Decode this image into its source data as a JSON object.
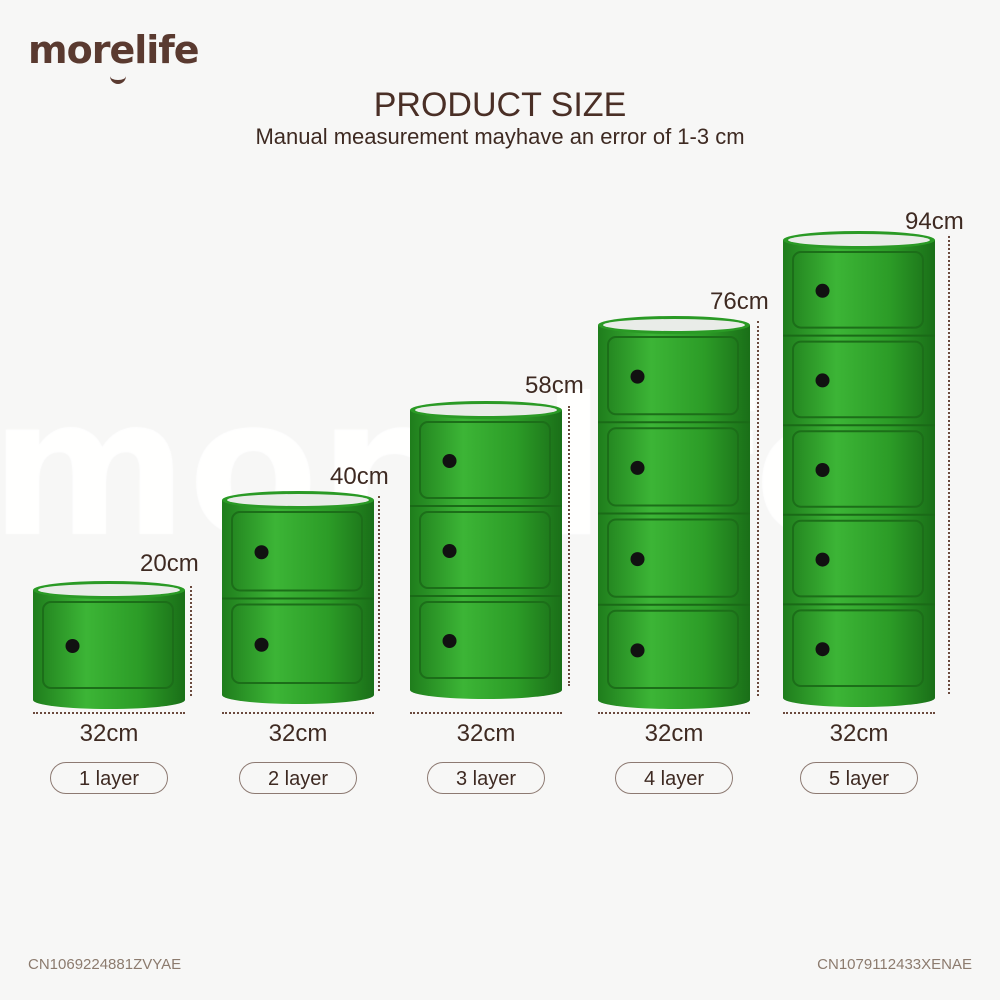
{
  "brand": {
    "logo_text": "morelife"
  },
  "header": {
    "title": "PRODUCT SIZE",
    "subtitle": "Manual measurement mayhave an error of 1-3 cm"
  },
  "colors": {
    "cabinet_green": "#2f9e2a",
    "text_brown": "#4a2f26",
    "background": "#f7f7f6"
  },
  "products": [
    {
      "layers": 1,
      "height": "20cm",
      "width": "32cm",
      "label": "1 layer"
    },
    {
      "layers": 2,
      "height": "40cm",
      "width": "32cm",
      "label": "2 layer"
    },
    {
      "layers": 3,
      "height": "58cm",
      "width": "32cm",
      "label": "3 layer"
    },
    {
      "layers": 4,
      "height": "76cm",
      "width": "32cm",
      "label": "4 layer"
    },
    {
      "layers": 5,
      "height": "94cm",
      "width": "32cm",
      "label": "5 layer"
    }
  ],
  "footer": {
    "code_left": "CN1069224881ZVYAE",
    "code_right": "CN1079112433XENAE"
  }
}
